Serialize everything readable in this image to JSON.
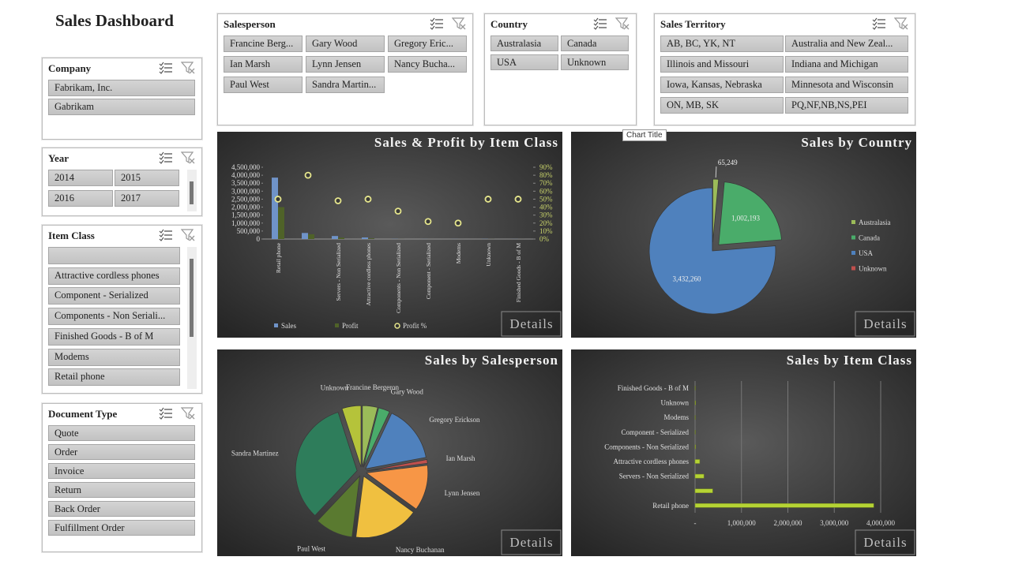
{
  "title": "Sales Dashboard",
  "slicers": [
    {
      "title": "Company",
      "items": [
        "Fabrikam, Inc.",
        "Gabrikam"
      ]
    },
    {
      "title": "Year",
      "items": [
        "2014",
        "2015",
        "2016",
        "2017"
      ]
    },
    {
      "title": "Item Class",
      "items": [
        null,
        "Attractive cordless phones",
        "Component - Serialized",
        "Components - Non Seriali...",
        "Finished Goods - B of M",
        "Modems",
        "Retail phone"
      ]
    },
    {
      "title": "Document Type",
      "items": [
        "Quote",
        "Order",
        "Invoice",
        "Return",
        "Back Order",
        "Fulfillment Order"
      ]
    },
    {
      "title": "Salesperson",
      "items": [
        "Francine Berg...",
        "Gary Wood",
        "Gregory Eric...",
        "Ian Marsh",
        "Lynn Jensen",
        "Nancy Bucha...",
        "Paul West",
        "Sandra Martin..."
      ]
    },
    {
      "title": "Country",
      "items": [
        "Australasia",
        "Canada",
        "USA",
        "Unknown"
      ]
    },
    {
      "title": "Sales Territory",
      "items": [
        "AB, BC, YK, NT",
        "Australia and New Zeal...",
        "Illinois and Missouri",
        "Indiana and Michigan",
        "Iowa, Kansas, Nebraska",
        "Minnesota and Wisconsin",
        "ON, MB, SK",
        "PQ,NF,NB,NS,PEI"
      ]
    }
  ],
  "chart_data": [
    {
      "type": "combo",
      "title": "Sales & Profit by Item Class",
      "categories": [
        "Retail phone",
        null,
        "Servers - Non Serialized",
        "Attractive cordless phones",
        "Components - Non Serialized",
        "Component - Serialized",
        "Modems",
        "Unknown",
        "Finished Goods - B of M"
      ],
      "series": [
        {
          "name": "Sales",
          "type": "bar",
          "color": "#6f93c8",
          "values": [
            3850000,
            380000,
            190000,
            100000,
            10000,
            5000,
            5000,
            10000,
            5000
          ]
        },
        {
          "name": "Profit",
          "type": "bar",
          "color": "#4f6228",
          "values": [
            2000000,
            300000,
            90000,
            40000,
            3000,
            1000,
            1000,
            5000,
            2500
          ]
        },
        {
          "name": "Profit %",
          "type": "scatter",
          "axis": "y2",
          "color": "#e6e68c",
          "values": [
            50,
            80,
            48,
            50,
            35,
            22,
            20,
            50,
            50
          ]
        }
      ],
      "ylim": [
        0,
        4500000
      ],
      "yticks": [
        0,
        {
          "value": 500000,
          "label": "500,000"
        },
        {
          "value": 1000000,
          "label": "1,000,000"
        },
        {
          "value": 1500000,
          "label": "1,500,000"
        },
        {
          "value": 2000000,
          "label": "2,000,000"
        },
        {
          "value": 2500000,
          "label": "2,500,000"
        },
        {
          "value": 3000000,
          "label": "3,000,000"
        },
        {
          "value": 3500000,
          "label": "3,500,000"
        },
        {
          "value": 4000000,
          "label": "4,000,000"
        },
        {
          "value": 4500000,
          "label": "4,500,000"
        }
      ],
      "y2lim": [
        0,
        90
      ],
      "y2ticks": [
        {
          "value": 0,
          "label": "0%"
        },
        {
          "value": 10,
          "label": "10%"
        },
        {
          "value": 20,
          "label": "20%"
        },
        {
          "value": 30,
          "label": "30%"
        },
        {
          "value": 40,
          "label": "40%"
        },
        {
          "value": 50,
          "label": "50%"
        },
        {
          "value": 60,
          "label": "60%"
        },
        {
          "value": 70,
          "label": "70%"
        },
        {
          "value": 80,
          "label": "80%"
        },
        {
          "value": 90,
          "label": "90%"
        }
      ],
      "details_button": "Details"
    },
    {
      "type": "pie",
      "title": "Sales by Country",
      "categories": [
        "Australasia",
        "Canada",
        "USA",
        "Unknown"
      ],
      "values": [
        65249,
        1002193,
        3432260,
        0
      ],
      "value_labels": [
        "65,249",
        "1,002,193",
        "3,432,260",
        null
      ],
      "colors": [
        "#9bbb59",
        "#4aac6a",
        "#4f81bd",
        "#c0504d"
      ],
      "exploded": [
        true,
        true,
        false,
        false
      ],
      "legend": "right",
      "tooltip": "Chart Title",
      "details_button": "Details"
    },
    {
      "type": "pie",
      "title": "Sales by Salesperson",
      "categories": [
        "Francine Bergeron",
        "Gary Wood",
        "Gregory Erickson",
        "Ian Marsh",
        "Lynn Jensen",
        "Nancy Buchanan",
        "Paul West",
        "Sandra Martinez",
        "Unknown"
      ],
      "values": [
        4,
        3,
        15,
        1,
        12,
        17,
        10,
        33,
        5
      ],
      "colors": [
        "#9bbb59",
        "#4aac6a",
        "#4f81bd",
        "#c0504d",
        "#f79646",
        "#f0c040",
        "#5a7a30",
        "#2e7d5b",
        "#b5c33a"
      ],
      "exploded": true,
      "details_button": "Details"
    },
    {
      "type": "barh",
      "title": "Sales by Item Class",
      "categories": [
        "Finished Goods - B of M",
        "Unknown",
        "Modems",
        "Component - Serialized",
        "Components - Non Serialized",
        "Attractive cordless phones",
        "Servers - Non Serialized",
        null,
        "Retail phone"
      ],
      "values": [
        5000,
        10000,
        5000,
        5000,
        10000,
        100000,
        190000,
        380000,
        3850000
      ],
      "color": "#b5d334",
      "xlim": [
        0,
        4000000
      ],
      "xticks": [
        {
          "value": 0,
          "label": "-"
        },
        {
          "value": 1000000,
          "label": "1,000,000"
        },
        {
          "value": 2000000,
          "label": "2,000,000"
        },
        {
          "value": 3000000,
          "label": "3,000,000"
        },
        {
          "value": 4000000,
          "label": "4,000,000"
        }
      ],
      "grid": true,
      "details_button": "Details"
    }
  ]
}
